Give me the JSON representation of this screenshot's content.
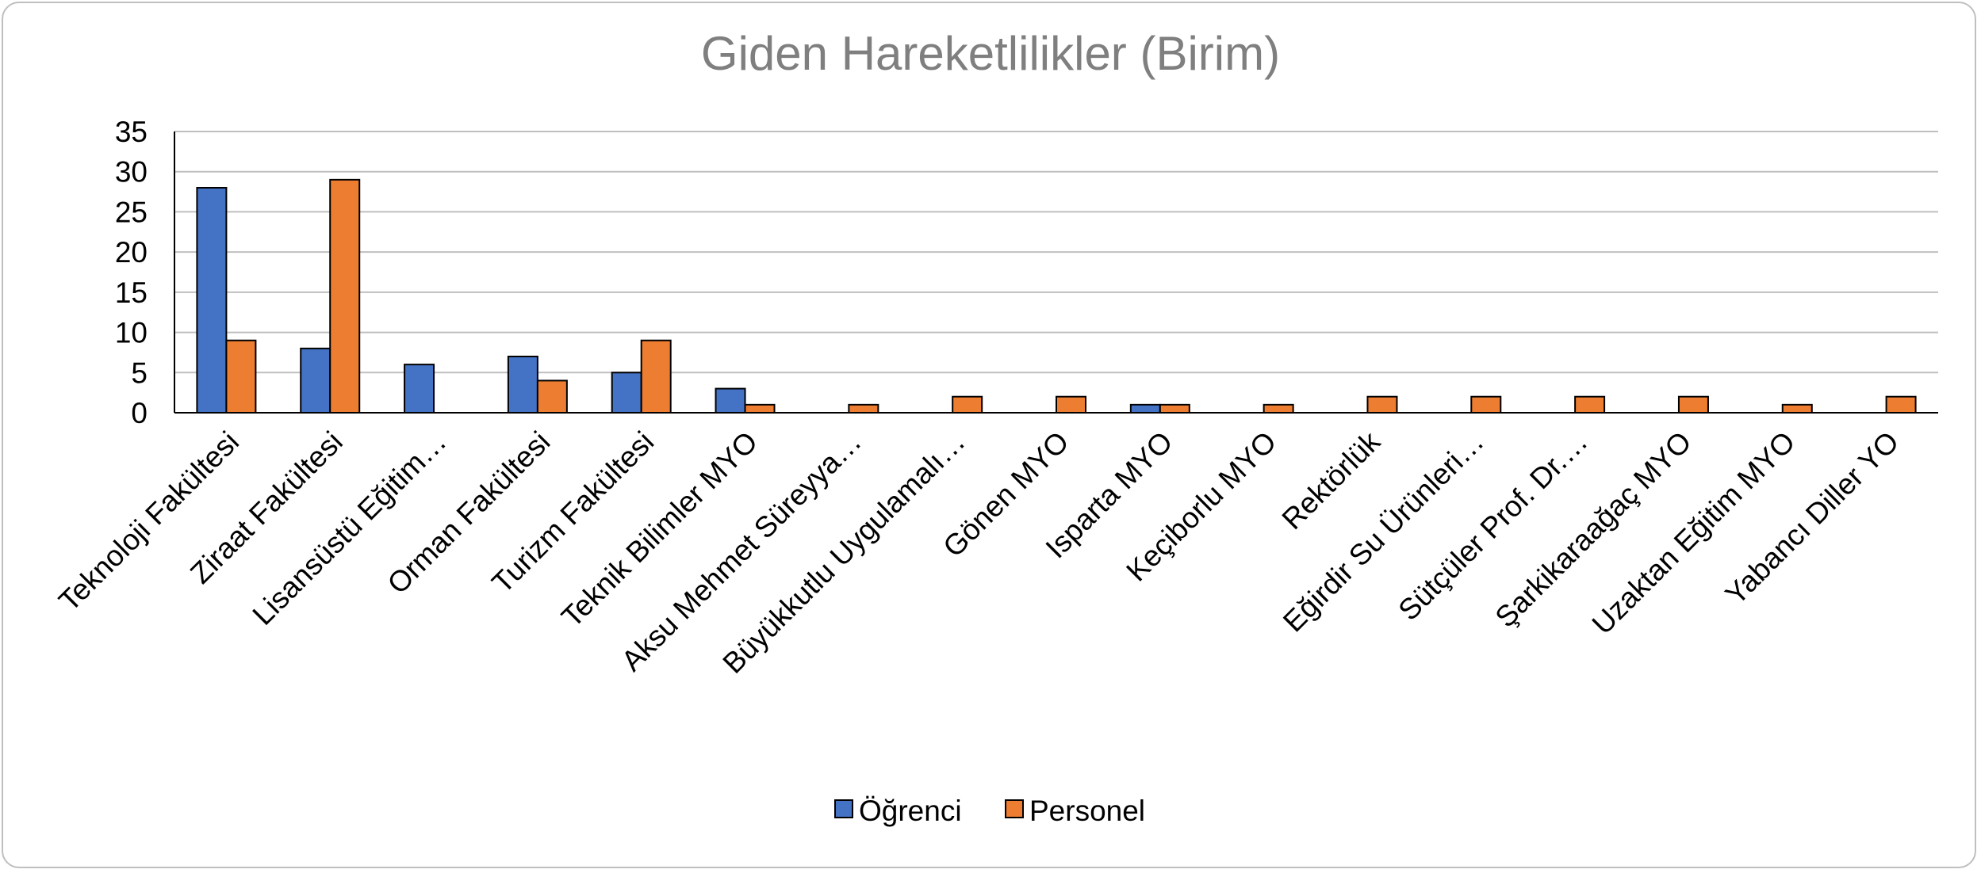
{
  "chart_data": {
    "type": "bar",
    "title": "Giden Hareketlilikler (Birim)",
    "xlabel": "",
    "ylabel": "",
    "ylim": [
      0,
      35
    ],
    "yticks": [
      0,
      5,
      10,
      15,
      20,
      25,
      30,
      35
    ],
    "grid": true,
    "legend_position": "bottom",
    "categories": [
      "Teknoloji Fakültesi",
      "Ziraat Fakültesi",
      "Lisansüstü Eğitim…",
      "Orman Fakültesi",
      "Turizm Fakültesi",
      "Teknik Bilimler MYO",
      "Aksu Mehmet Süreyya…",
      "Büyükkutlu Uygulamalı…",
      "Gönen MYO",
      "Isparta MYO",
      "Keçiborlu MYO",
      "Rektörlük",
      "Eğirdir Su Ürünleri…",
      "Sütçüler Prof. Dr.…",
      "Şarkikaraağaç MYO",
      "Uzaktan Eğitim MYO",
      "Yabancı Diller YO"
    ],
    "series": [
      {
        "name": "Öğrenci",
        "color": "#4472c4",
        "values": [
          28,
          8,
          6,
          7,
          5,
          3,
          0,
          0,
          0,
          1,
          0,
          0,
          0,
          0,
          0,
          0,
          0
        ]
      },
      {
        "name": "Personel",
        "color": "#ed7d31",
        "values": [
          9,
          29,
          0,
          4,
          9,
          1,
          1,
          2,
          2,
          1,
          1,
          2,
          2,
          2,
          2,
          1,
          2
        ]
      }
    ]
  }
}
